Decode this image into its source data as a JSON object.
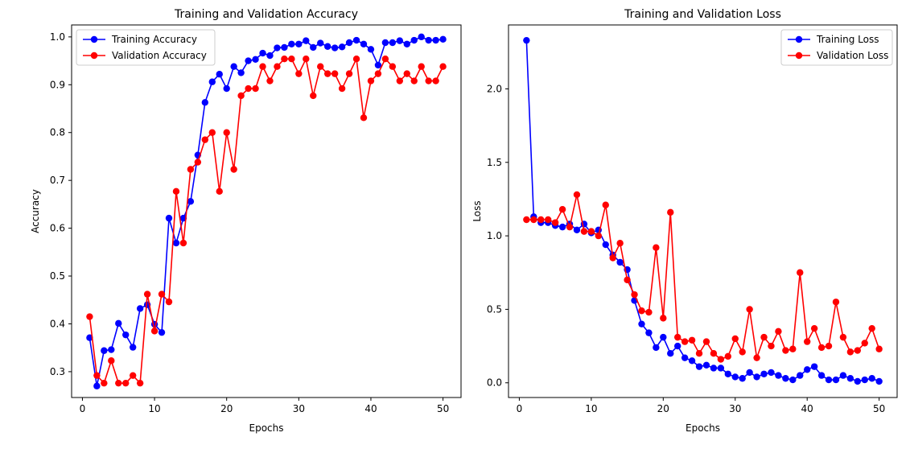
{
  "chart_data": [
    {
      "type": "line",
      "title": "Training and Validation Accuracy",
      "xlabel": "Epochs",
      "ylabel": "Accuracy",
      "xlim": [
        -1.5,
        52.5
      ],
      "ylim": [
        0.246,
        1.025
      ],
      "xticks": [
        0,
        10,
        20,
        30,
        40,
        50
      ],
      "yticks": [
        0.3,
        0.4,
        0.5,
        0.6,
        0.7,
        0.8,
        0.9,
        1.0
      ],
      "ytick_labels": [
        "0.3",
        "0.4",
        "0.5",
        "0.6",
        "0.7",
        "0.8",
        "0.9",
        "1.0"
      ],
      "grid": false,
      "legend_position": "top-left",
      "x": [
        1,
        2,
        3,
        4,
        5,
        6,
        7,
        8,
        9,
        10,
        11,
        12,
        13,
        14,
        15,
        16,
        17,
        18,
        19,
        20,
        21,
        22,
        23,
        24,
        25,
        26,
        27,
        28,
        29,
        30,
        31,
        32,
        33,
        34,
        35,
        36,
        37,
        38,
        39,
        40,
        41,
        42,
        43,
        44,
        45,
        46,
        47,
        48,
        49,
        50
      ],
      "series": [
        {
          "name": "Training Accuracy",
          "color": "#0000ff",
          "values": [
            0.371,
            0.27,
            0.344,
            0.346,
            0.401,
            0.377,
            0.351,
            0.432,
            0.44,
            0.399,
            0.382,
            0.621,
            0.569,
            0.621,
            0.656,
            0.753,
            0.863,
            0.906,
            0.922,
            0.892,
            0.938,
            0.925,
            0.95,
            0.953,
            0.966,
            0.961,
            0.977,
            0.978,
            0.985,
            0.985,
            0.992,
            0.978,
            0.987,
            0.98,
            0.977,
            0.979,
            0.988,
            0.993,
            0.985,
            0.974,
            0.941,
            0.988,
            0.988,
            0.992,
            0.985,
            0.993,
            1.0,
            0.993,
            0.993,
            0.995
          ]
        },
        {
          "name": "Validation Accuracy",
          "color": "#ff0000",
          "values": [
            0.415,
            0.292,
            0.276,
            0.323,
            0.276,
            0.276,
            0.292,
            0.276,
            0.462,
            0.385,
            0.462,
            0.446,
            0.677,
            0.569,
            0.723,
            0.738,
            0.785,
            0.8,
            0.677,
            0.8,
            0.723,
            0.877,
            0.892,
            0.892,
            0.938,
            0.908,
            0.938,
            0.954,
            0.954,
            0.923,
            0.954,
            0.877,
            0.938,
            0.923,
            0.923,
            0.892,
            0.923,
            0.954,
            0.831,
            0.908,
            0.923,
            0.954,
            0.938,
            0.908,
            0.923,
            0.908,
            0.938,
            0.908,
            0.908,
            0.938
          ]
        }
      ]
    },
    {
      "type": "line",
      "title": "Training and Validation Loss",
      "xlabel": "Epochs",
      "ylabel": "Loss",
      "xlim": [
        -1.5,
        52.5
      ],
      "ylim": [
        -0.1,
        2.435
      ],
      "xticks": [
        0,
        10,
        20,
        30,
        40,
        50
      ],
      "yticks": [
        0.0,
        0.5,
        1.0,
        1.5,
        2.0
      ],
      "ytick_labels": [
        "0.0",
        "0.5",
        "1.0",
        "1.5",
        "2.0"
      ],
      "grid": false,
      "legend_position": "top-right",
      "x": [
        1,
        2,
        3,
        4,
        5,
        6,
        7,
        8,
        9,
        10,
        11,
        12,
        13,
        14,
        15,
        16,
        17,
        18,
        19,
        20,
        21,
        22,
        23,
        24,
        25,
        26,
        27,
        28,
        29,
        30,
        31,
        32,
        33,
        34,
        35,
        36,
        37,
        38,
        39,
        40,
        41,
        42,
        43,
        44,
        45,
        46,
        47,
        48,
        49,
        50
      ],
      "series": [
        {
          "name": "Training Loss",
          "color": "#0000ff",
          "values": [
            2.33,
            1.13,
            1.09,
            1.09,
            1.07,
            1.06,
            1.08,
            1.04,
            1.08,
            1.02,
            1.04,
            0.94,
            0.87,
            0.82,
            0.77,
            0.56,
            0.4,
            0.34,
            0.24,
            0.31,
            0.2,
            0.25,
            0.17,
            0.15,
            0.11,
            0.12,
            0.1,
            0.1,
            0.06,
            0.04,
            0.03,
            0.07,
            0.04,
            0.06,
            0.07,
            0.05,
            0.03,
            0.02,
            0.05,
            0.09,
            0.11,
            0.05,
            0.02,
            0.02,
            0.05,
            0.03,
            0.01,
            0.02,
            0.03,
            0.01
          ]
        },
        {
          "name": "Validation Loss",
          "color": "#ff0000",
          "values": [
            1.11,
            1.11,
            1.11,
            1.11,
            1.09,
            1.18,
            1.06,
            1.28,
            1.03,
            1.03,
            1.0,
            1.21,
            0.85,
            0.95,
            0.7,
            0.6,
            0.49,
            0.48,
            0.92,
            0.44,
            1.16,
            0.31,
            0.28,
            0.29,
            0.2,
            0.28,
            0.2,
            0.16,
            0.18,
            0.3,
            0.21,
            0.5,
            0.17,
            0.31,
            0.25,
            0.35,
            0.22,
            0.23,
            0.75,
            0.28,
            0.37,
            0.24,
            0.25,
            0.55,
            0.31,
            0.21,
            0.22,
            0.27,
            0.37,
            0.23
          ]
        }
      ]
    }
  ]
}
